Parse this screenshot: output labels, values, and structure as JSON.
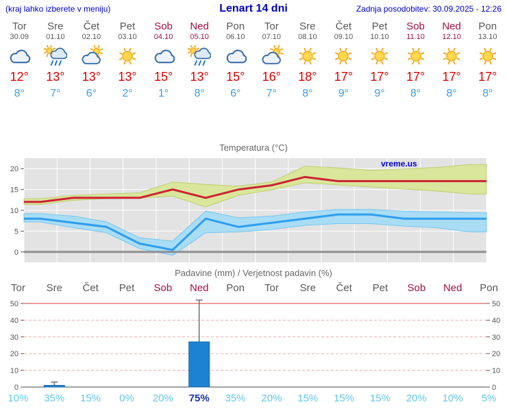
{
  "header": {
    "left_note": "(kraj lahko izberete v meniju)",
    "title": "Lenart 14 dni",
    "updated_label": "Zadnja posodobitev: 30.09.2025 - 12:26"
  },
  "days": [
    {
      "name": "Tor",
      "date": "30.09",
      "weekend": false,
      "icon": "cloudy-icon",
      "tmax": "12°",
      "tmin": "8°"
    },
    {
      "name": "Sre",
      "date": "01.10",
      "weekend": false,
      "icon": "rain-sun-icon",
      "tmax": "13°",
      "tmin": "7°"
    },
    {
      "name": "Čet",
      "date": "02.10",
      "weekend": false,
      "icon": "partly-cloudy-icon",
      "tmax": "13°",
      "tmin": "6°"
    },
    {
      "name": "Pet",
      "date": "03.10",
      "weekend": false,
      "icon": "sunny-icon",
      "tmax": "13°",
      "tmin": "2°"
    },
    {
      "name": "Sob",
      "date": "04.10",
      "weekend": true,
      "icon": "cloudy-icon",
      "tmax": "15°",
      "tmin": "1°"
    },
    {
      "name": "Ned",
      "date": "05.10",
      "weekend": true,
      "icon": "rain-sun-icon",
      "tmax": "13°",
      "tmin": "8°"
    },
    {
      "name": "Pon",
      "date": "06.10",
      "weekend": false,
      "icon": "cloudy-icon",
      "tmax": "15°",
      "tmin": "6°"
    },
    {
      "name": "Tor",
      "date": "07.10",
      "weekend": false,
      "icon": "partly-cloudy-icon",
      "tmax": "16°",
      "tmin": "7°"
    },
    {
      "name": "Sre",
      "date": "08.10",
      "weekend": false,
      "icon": "sunny-icon",
      "tmax": "18°",
      "tmin": "8°"
    },
    {
      "name": "Čet",
      "date": "09.10",
      "weekend": false,
      "icon": "sunny-icon",
      "tmax": "17°",
      "tmin": "9°"
    },
    {
      "name": "Pet",
      "date": "10.10",
      "weekend": false,
      "icon": "sunny-icon",
      "tmax": "17°",
      "tmin": "9°"
    },
    {
      "name": "Sob",
      "date": "11.10",
      "weekend": true,
      "icon": "sunny-icon",
      "tmax": "17°",
      "tmin": "8°"
    },
    {
      "name": "Ned",
      "date": "12.10",
      "weekend": true,
      "icon": "sunny-icon",
      "tmax": "17°",
      "tmin": "8°"
    },
    {
      "name": "Pon",
      "date": "13.10",
      "weekend": false,
      "icon": "sunny-icon",
      "tmax": "17°",
      "tmin": "8°"
    }
  ],
  "chart_data": [
    {
      "type": "line",
      "title": "Temperatura (°C)",
      "watermark": "vreme.us",
      "categories": [
        "Tor",
        "Sre",
        "Čet",
        "Pet",
        "Sob",
        "Ned",
        "Pon",
        "Tor",
        "Sre",
        "Čet",
        "Pet",
        "Sob",
        "Ned",
        "Pon"
      ],
      "ylim": [
        -2.5,
        22.5
      ],
      "yticks": [
        0,
        5,
        10,
        15,
        20
      ],
      "grid": true,
      "legend": false,
      "series": [
        {
          "name": "tmax",
          "values": [
            12,
            13,
            13,
            13,
            15,
            13,
            15,
            16,
            18,
            17,
            17,
            17,
            17,
            17
          ]
        },
        {
          "name": "tmax_range_upper",
          "values": [
            12.8,
            13.6,
            13.9,
            14.2,
            16.8,
            16.2,
            15.8,
            16.8,
            20.6,
            20.2,
            19.6,
            19.9,
            20.3,
            21
          ]
        },
        {
          "name": "tmax_range_lower",
          "values": [
            11.4,
            12.4,
            12.8,
            12.9,
            13.4,
            10.8,
            13.6,
            14.9,
            16.6,
            16.1,
            15.6,
            15.1,
            14.6,
            13.9
          ]
        },
        {
          "name": "tmin",
          "values": [
            8,
            7,
            6,
            2,
            0.5,
            8,
            6,
            7,
            8,
            9,
            9,
            8,
            8,
            8
          ]
        },
        {
          "name": "tmin_range_upper",
          "values": [
            9.2,
            8.6,
            7.2,
            3.4,
            2.6,
            9.8,
            8.2,
            8.6,
            9.6,
            10.2,
            10.2,
            9.8,
            9.6,
            9.4
          ]
        },
        {
          "name": "tmin_range_lower",
          "values": [
            7.2,
            5.8,
            4.6,
            0.8,
            -0.8,
            4.6,
            4.8,
            5.4,
            6.4,
            6.8,
            6.8,
            6.2,
            5.8,
            4.8
          ]
        }
      ],
      "colors": {
        "plot_bg": "#e3e3e3",
        "grid": "#ffffff",
        "zero_line": "#8f8f8f",
        "tmax_line": "#cc2233",
        "tmax_band": "#d9e69b",
        "tmax_band_edge": "#bccf70",
        "tmin_line": "#2f9ded",
        "tmin_band": "#a9ddf6",
        "tmin_band_edge": "#74c6ef",
        "watermark": "#0000cc",
        "tick_text": "#555555"
      }
    },
    {
      "type": "bar",
      "title": "Padavine (mm) / Verjetnost padavin (%)",
      "categories": [
        "Tor",
        "Sre",
        "Čet",
        "Pet",
        "Sob",
        "Ned",
        "Pon",
        "Tor",
        "Sre",
        "Čet",
        "Pet",
        "Sob",
        "Ned",
        "Pon"
      ],
      "ylim": [
        0,
        52
      ],
      "yticks": [
        0,
        10,
        20,
        30,
        40,
        50
      ],
      "values": [
        0,
        1,
        0,
        0,
        0,
        27,
        0,
        0,
        0,
        0,
        0,
        0,
        0,
        0
      ],
      "whisker_max": [
        0,
        3,
        0,
        0,
        0,
        52,
        0,
        0,
        0,
        0,
        0,
        0,
        0,
        0
      ],
      "probabilities_pct": [
        10,
        35,
        15,
        0,
        20,
        75,
        35,
        20,
        15,
        15,
        15,
        20,
        10,
        5
      ],
      "highlight_index": 5,
      "colors": {
        "bar": "#1e82d2",
        "bar_edge": "#1565a8",
        "grid": "#f2a5a5",
        "top_line": "#e87b7b",
        "axis": "#444444",
        "whisker": "#707070",
        "prob": "#5ec8e8",
        "prob_highlight": "#1433aa",
        "tick_text": "#555555"
      }
    }
  ]
}
